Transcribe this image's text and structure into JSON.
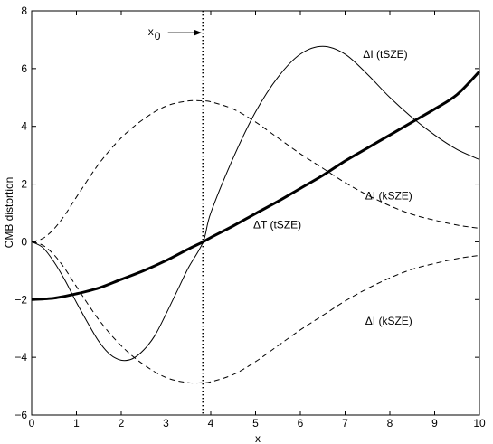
{
  "chart_data": {
    "type": "line",
    "title": "",
    "xlabel": "x",
    "ylabel": "CMB distortion",
    "xlim": [
      0,
      10
    ],
    "ylim": [
      -6,
      8
    ],
    "xticks": [
      "0",
      "1",
      "2",
      "3",
      "4",
      "5",
      "6",
      "7",
      "8",
      "9",
      "10"
    ],
    "yticks": [
      "−6",
      "−4",
      "−2",
      "0",
      "2",
      "4",
      "6",
      "8"
    ],
    "grid": false,
    "series": [
      {
        "style": "solid-thin",
        "x": [
          0,
          0.25,
          0.5,
          0.75,
          1,
          1.25,
          1.5,
          1.75,
          2,
          2.25,
          2.5,
          2.75,
          3,
          3.25,
          3.5,
          3.83,
          4,
          4.5,
          5,
          5.5,
          6,
          6.5,
          7,
          7.5,
          8,
          8.5,
          9,
          9.5,
          10
        ],
        "y": [
          0,
          -0.2,
          -0.7,
          -1.35,
          -2.1,
          -2.8,
          -3.45,
          -3.9,
          -4.1,
          -4.05,
          -3.75,
          -3.25,
          -2.5,
          -1.7,
          -0.9,
          0,
          1.0,
          2.9,
          4.5,
          5.7,
          6.5,
          6.77,
          6.5,
          5.8,
          5.0,
          4.3,
          3.7,
          3.2,
          2.85
        ]
      },
      {
        "style": "solid-thick",
        "x": [
          0,
          0.5,
          1,
          1.5,
          2,
          2.5,
          3,
          3.5,
          3.83,
          4,
          4.5,
          5,
          5.5,
          6,
          6.5,
          7,
          7.5,
          8,
          8.5,
          9,
          9.5,
          10
        ],
        "y": [
          -2.0,
          -1.95,
          -1.8,
          -1.6,
          -1.3,
          -1.0,
          -0.65,
          -0.25,
          0,
          0.15,
          0.55,
          0.98,
          1.4,
          1.85,
          2.3,
          2.8,
          3.25,
          3.7,
          4.15,
          4.6,
          5.1,
          5.9
        ]
      },
      {
        "style": "dashed",
        "x": [
          0,
          0.25,
          0.5,
          0.75,
          1,
          1.5,
          2,
          2.5,
          3,
          3.5,
          3.83,
          4,
          4.5,
          5,
          5.5,
          6,
          6.5,
          7,
          7.5,
          8,
          8.5,
          9,
          9.5,
          10
        ],
        "y": [
          0,
          0.12,
          0.45,
          0.95,
          1.55,
          2.7,
          3.6,
          4.25,
          4.7,
          4.88,
          4.88,
          4.85,
          4.6,
          4.15,
          3.6,
          3.05,
          2.55,
          2.05,
          1.62,
          1.25,
          0.95,
          0.75,
          0.58,
          0.47
        ]
      },
      {
        "style": "dashed",
        "x": [
          0,
          0.25,
          0.5,
          0.75,
          1,
          1.5,
          2,
          2.5,
          3,
          3.5,
          3.83,
          4,
          4.5,
          5,
          5.5,
          6,
          6.5,
          7,
          7.5,
          8,
          8.5,
          9,
          9.5,
          10
        ],
        "y": [
          0,
          -0.12,
          -0.45,
          -0.95,
          -1.55,
          -2.7,
          -3.6,
          -4.25,
          -4.7,
          -4.88,
          -4.88,
          -4.85,
          -4.6,
          -4.15,
          -3.6,
          -3.05,
          -2.55,
          -2.05,
          -1.62,
          -1.25,
          -0.95,
          -0.75,
          -0.58,
          -0.47
        ]
      }
    ],
    "vline": {
      "x": 3.83,
      "style": "dotted"
    },
    "annotations": {
      "tsze_intensity": {
        "text": "ΔI (tSZE)",
        "x": 7.4,
        "y": 6.5
      },
      "ksze_upper": {
        "text": "ΔI (kSZE)",
        "x": 7.45,
        "y": 1.6
      },
      "tsze_temperature": {
        "text": "ΔT (tSZE)",
        "x": 4.95,
        "y": 0.6
      },
      "ksze_lower": {
        "text": "ΔI (kSZE)",
        "x": 7.45,
        "y": -2.75
      },
      "x0_marker": {
        "text": "x",
        "subscript": "0",
        "x": 2.6,
        "y": 7.15,
        "arrow_to_x": 3.8
      }
    }
  }
}
